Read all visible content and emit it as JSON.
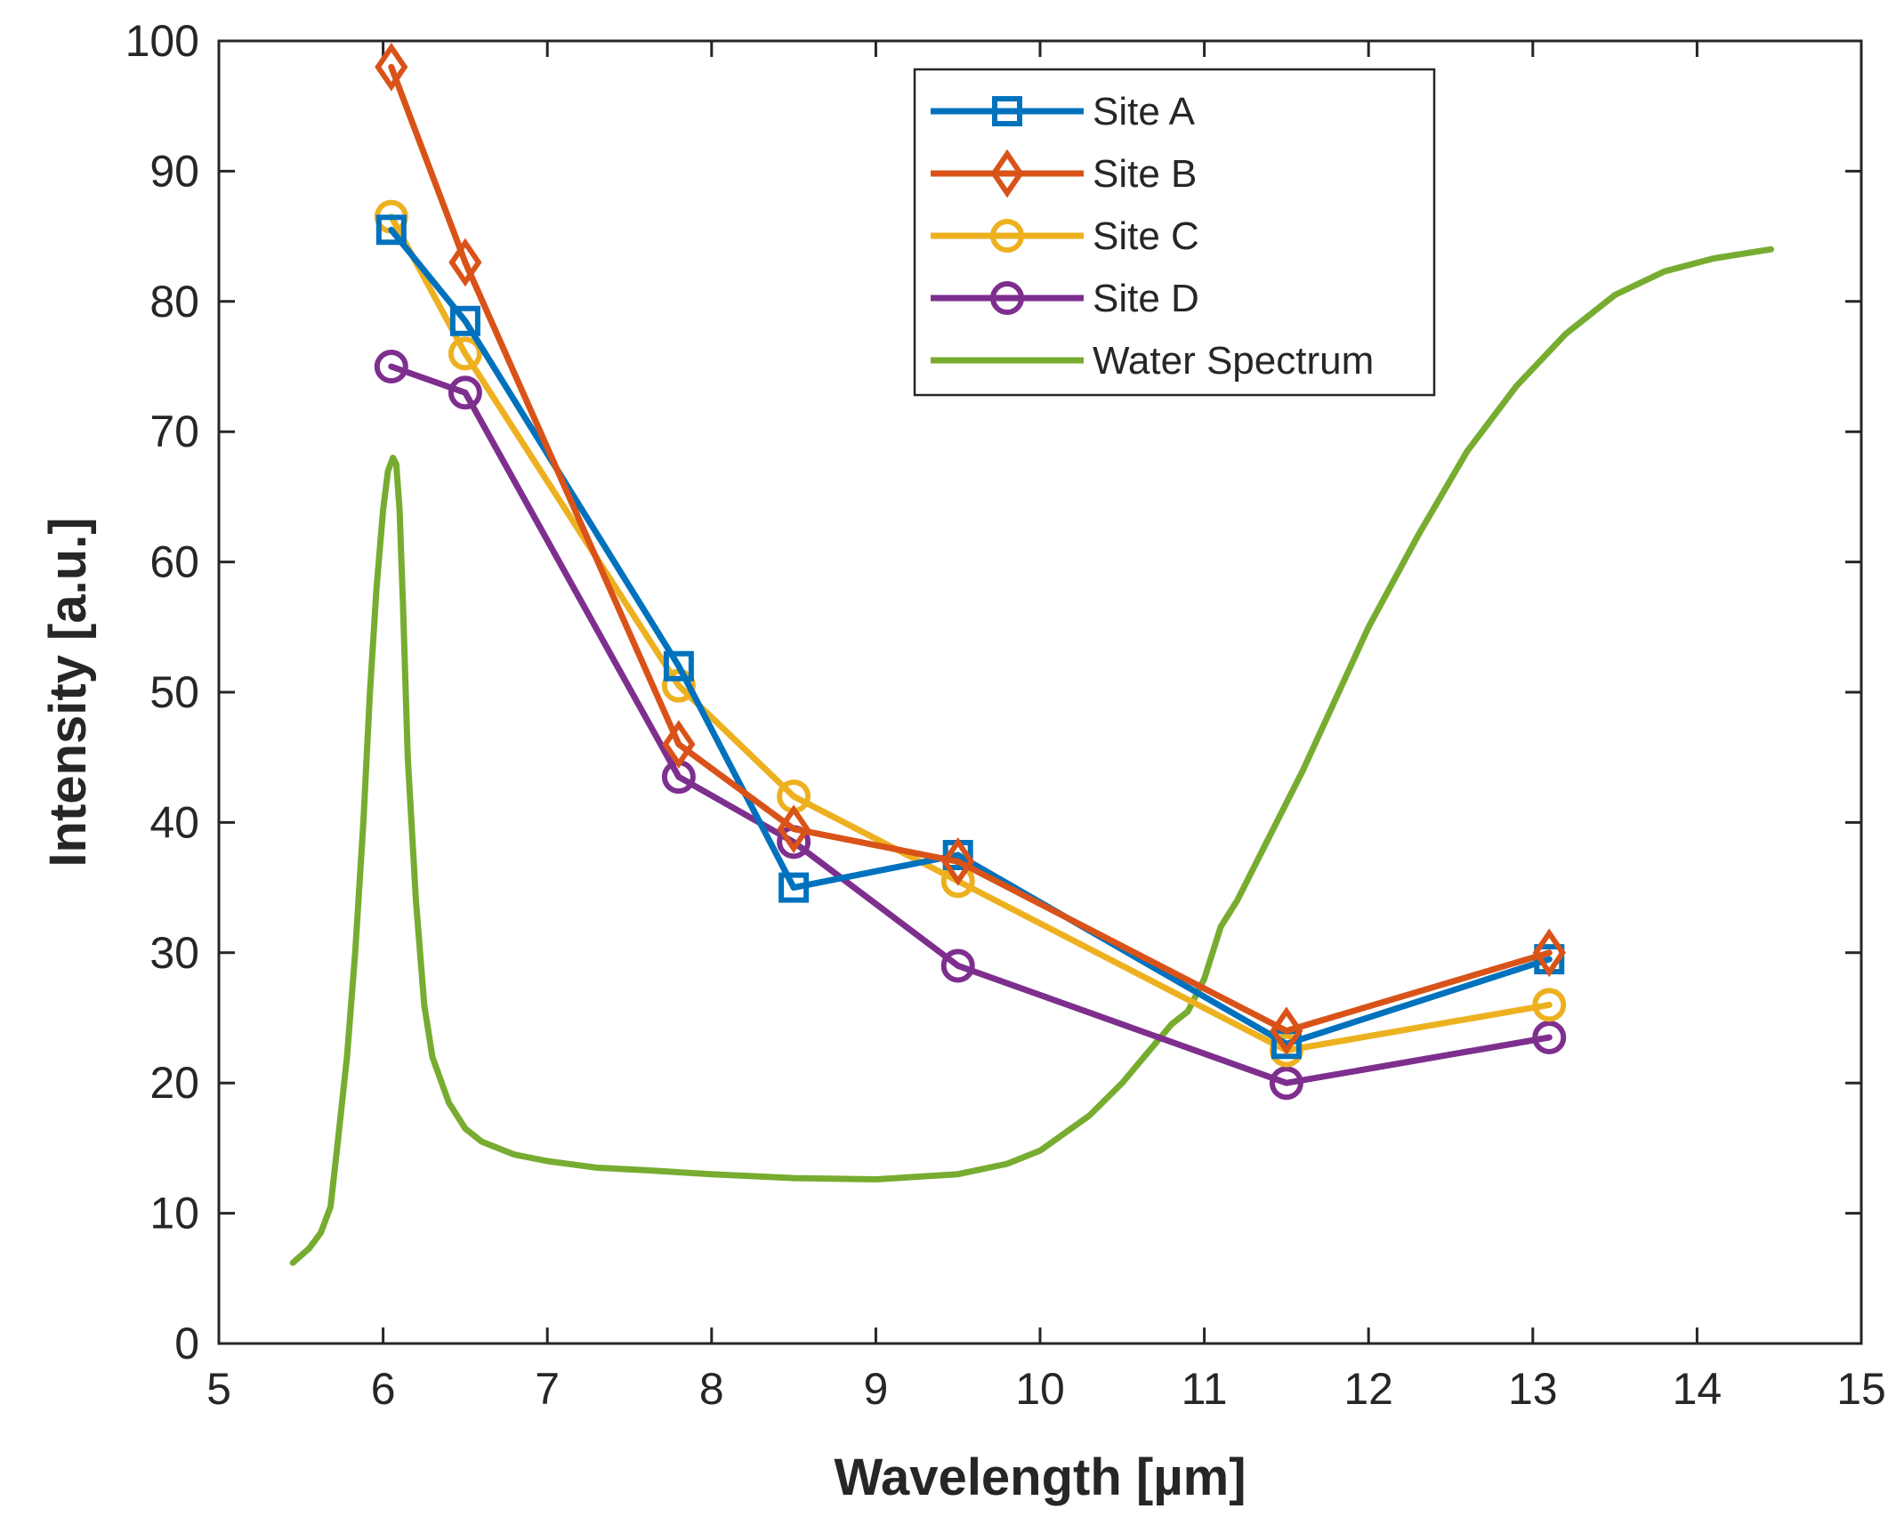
{
  "chart_data": {
    "type": "line",
    "title": "",
    "xlabel": "Wavelength  [µm]",
    "ylabel": "Intensity [a.u.]",
    "xlim": [
      5,
      15
    ],
    "ylim": [
      0,
      100
    ],
    "xticks": [
      5,
      6,
      7,
      8,
      9,
      10,
      11,
      12,
      13,
      14,
      15
    ],
    "yticks": [
      0,
      10,
      20,
      30,
      40,
      50,
      60,
      70,
      80,
      90,
      100
    ],
    "grid": false,
    "legend_position": "top-right",
    "series": [
      {
        "name": "Site A",
        "color": "#0072BD",
        "marker": "square",
        "x": [
          6.05,
          6.5,
          7.8,
          8.5,
          9.5,
          11.5,
          13.1
        ],
        "y": [
          85.5,
          78.5,
          52,
          35,
          37.5,
          23,
          29.5
        ]
      },
      {
        "name": "Site B",
        "color": "#D95319",
        "marker": "diamond",
        "x": [
          6.05,
          6.5,
          7.8,
          8.5,
          9.5,
          11.5,
          13.1
        ],
        "y": [
          98,
          83,
          46,
          39.5,
          37,
          24,
          30
        ]
      },
      {
        "name": "Site C",
        "color": "#EDB120",
        "marker": "circle",
        "x": [
          6.05,
          6.5,
          7.8,
          8.5,
          9.5,
          11.5,
          13.1
        ],
        "y": [
          86.5,
          76,
          50.5,
          42,
          35.5,
          22.5,
          26
        ]
      },
      {
        "name": "Site D",
        "color": "#7E2F8E",
        "marker": "circle",
        "x": [
          6.05,
          6.5,
          7.8,
          8.5,
          9.5,
          11.5,
          13.1
        ],
        "y": [
          75,
          73,
          43.5,
          38.5,
          29,
          20,
          23.5
        ]
      },
      {
        "name": "Water Spectrum",
        "color": "#77AC30",
        "marker": "none",
        "x": [
          5.45,
          5.55,
          5.62,
          5.68,
          5.72,
          5.78,
          5.83,
          5.88,
          5.92,
          5.96,
          6.0,
          6.03,
          6.06,
          6.08,
          6.1,
          6.12,
          6.15,
          6.2,
          6.25,
          6.3,
          6.4,
          6.5,
          6.6,
          6.8,
          7.0,
          7.3,
          7.6,
          8.0,
          8.5,
          9.0,
          9.5,
          9.8,
          10.0,
          10.3,
          10.5,
          10.7,
          10.8,
          10.9,
          11.0,
          11.1,
          11.2,
          11.4,
          11.6,
          11.8,
          12.0,
          12.3,
          12.6,
          12.9,
          13.2,
          13.5,
          13.8,
          14.1,
          14.45
        ],
        "y": [
          6.2,
          7.3,
          8.5,
          10.5,
          15,
          22,
          30,
          40,
          50,
          58,
          64,
          67,
          68,
          67.5,
          64,
          57,
          45,
          34,
          26,
          22,
          18.5,
          16.5,
          15.5,
          14.5,
          14,
          13.5,
          13.3,
          13,
          12.7,
          12.6,
          13,
          13.8,
          14.8,
          17.5,
          20,
          23,
          24.5,
          25.5,
          28,
          32,
          34,
          39,
          44,
          49.5,
          55,
          62,
          68.5,
          73.5,
          77.5,
          80.5,
          82.3,
          83.3,
          84
        ]
      }
    ]
  }
}
